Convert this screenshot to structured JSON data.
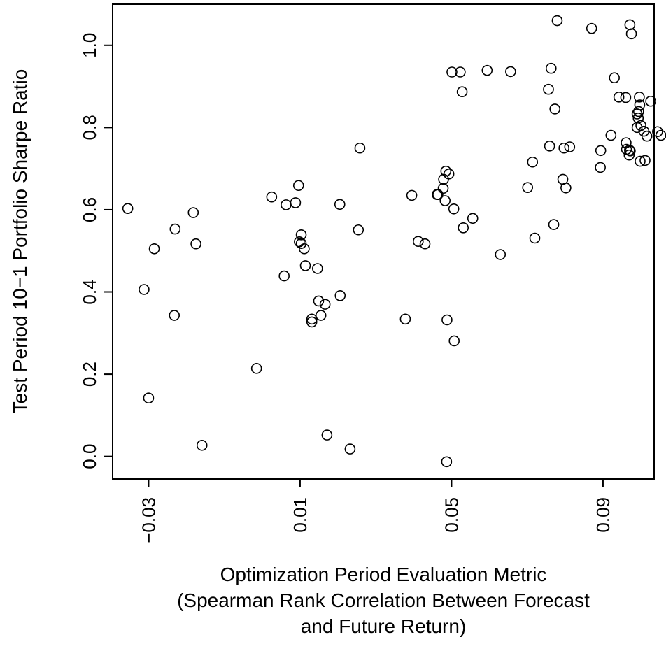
{
  "chart_data": {
    "type": "scatter",
    "title": "",
    "xlabel_lines": [
      "Optimization Period Evaluation Metric",
      "(Spearman Rank Correlation Between Forecast",
      "and Future Return)"
    ],
    "ylabel": "Test Period 10−1 Portfolio Sharpe Ratio",
    "xlim": [
      -0.0395,
      0.1035
    ],
    "ylim": [
      -0.055,
      1.1
    ],
    "xticks": [
      {
        "value": -0.03,
        "label": "−0.03"
      },
      {
        "value": 0.01,
        "label": "0.01"
      },
      {
        "value": 0.05,
        "label": "0.05"
      },
      {
        "value": 0.09,
        "label": "0.09"
      }
    ],
    "yticks": [
      {
        "value": 0.0,
        "label": "0.0"
      },
      {
        "value": 0.2,
        "label": "0.2"
      },
      {
        "value": 0.4,
        "label": "0.4"
      },
      {
        "value": 0.6,
        "label": "0.6"
      },
      {
        "value": 0.8,
        "label": "0.8"
      },
      {
        "value": 1.0,
        "label": "1.0"
      }
    ],
    "grid": false,
    "marker": "open-circle",
    "points": [
      {
        "x": -0.0355,
        "y": 0.603
      },
      {
        "x": -0.0312,
        "y": 0.406
      },
      {
        "x": -0.03,
        "y": 0.142
      },
      {
        "x": -0.0285,
        "y": 0.505
      },
      {
        "x": -0.0232,
        "y": 0.343
      },
      {
        "x": -0.023,
        "y": 0.553
      },
      {
        "x": -0.0182,
        "y": 0.593
      },
      {
        "x": -0.0175,
        "y": 0.517
      },
      {
        "x": -0.0159,
        "y": 0.027
      },
      {
        "x": -0.0015,
        "y": 0.214
      },
      {
        "x": 0.0025,
        "y": 0.631
      },
      {
        "x": 0.0058,
        "y": 0.439
      },
      {
        "x": 0.0063,
        "y": 0.612
      },
      {
        "x": 0.0088,
        "y": 0.617
      },
      {
        "x": 0.0096,
        "y": 0.659
      },
      {
        "x": 0.0098,
        "y": 0.522
      },
      {
        "x": 0.0103,
        "y": 0.539
      },
      {
        "x": 0.0103,
        "y": 0.518
      },
      {
        "x": 0.0111,
        "y": 0.505
      },
      {
        "x": 0.0114,
        "y": 0.464
      },
      {
        "x": 0.0131,
        "y": 0.334
      },
      {
        "x": 0.0131,
        "y": 0.327
      },
      {
        "x": 0.0146,
        "y": 0.457
      },
      {
        "x": 0.0149,
        "y": 0.378
      },
      {
        "x": 0.0155,
        "y": 0.343
      },
      {
        "x": 0.0166,
        "y": 0.37
      },
      {
        "x": 0.0171,
        "y": 0.052
      },
      {
        "x": 0.0205,
        "y": 0.613
      },
      {
        "x": 0.0206,
        "y": 0.391
      },
      {
        "x": 0.0232,
        "y": 0.018
      },
      {
        "x": 0.0254,
        "y": 0.551
      },
      {
        "x": 0.0258,
        "y": 0.75
      },
      {
        "x": 0.0378,
        "y": 0.334
      },
      {
        "x": 0.0395,
        "y": 0.635
      },
      {
        "x": 0.0412,
        "y": 0.523
      },
      {
        "x": 0.043,
        "y": 0.517
      },
      {
        "x": 0.0462,
        "y": 0.637
      },
      {
        "x": 0.0464,
        "y": 0.637
      },
      {
        "x": 0.0478,
        "y": 0.652
      },
      {
        "x": 0.0479,
        "y": 0.674
      },
      {
        "x": 0.0483,
        "y": 0.622
      },
      {
        "x": 0.0485,
        "y": 0.694
      },
      {
        "x": 0.0487,
        "y": -0.013
      },
      {
        "x": 0.0488,
        "y": 0.332
      },
      {
        "x": 0.0493,
        "y": 0.687
      },
      {
        "x": 0.0501,
        "y": 0.935
      },
      {
        "x": 0.0506,
        "y": 0.602
      },
      {
        "x": 0.0507,
        "y": 0.281
      },
      {
        "x": 0.0523,
        "y": 0.935
      },
      {
        "x": 0.0528,
        "y": 0.887
      },
      {
        "x": 0.0531,
        "y": 0.556
      },
      {
        "x": 0.0556,
        "y": 0.579
      },
      {
        "x": 0.0594,
        "y": 0.939
      },
      {
        "x": 0.0629,
        "y": 0.491
      },
      {
        "x": 0.0656,
        "y": 0.936
      },
      {
        "x": 0.0701,
        "y": 0.654
      },
      {
        "x": 0.0714,
        "y": 0.716
      },
      {
        "x": 0.072,
        "y": 0.531
      },
      {
        "x": 0.0756,
        "y": 0.893
      },
      {
        "x": 0.0759,
        "y": 0.755
      },
      {
        "x": 0.0763,
        "y": 0.944
      },
      {
        "x": 0.077,
        "y": 0.564
      },
      {
        "x": 0.0773,
        "y": 0.845
      },
      {
        "x": 0.0779,
        "y": 1.06
      },
      {
        "x": 0.0794,
        "y": 0.674
      },
      {
        "x": 0.0797,
        "y": 0.75
      },
      {
        "x": 0.0802,
        "y": 0.653
      },
      {
        "x": 0.0812,
        "y": 0.753
      },
      {
        "x": 0.087,
        "y": 1.041
      },
      {
        "x": 0.0893,
        "y": 0.703
      },
      {
        "x": 0.0894,
        "y": 0.744
      },
      {
        "x": 0.0921,
        "y": 0.781
      },
      {
        "x": 0.093,
        "y": 0.921
      },
      {
        "x": 0.0942,
        "y": 0.874
      },
      {
        "x": 0.096,
        "y": 0.873
      },
      {
        "x": 0.0961,
        "y": 0.763
      },
      {
        "x": 0.0962,
        "y": 0.747
      },
      {
        "x": 0.0969,
        "y": 0.733
      },
      {
        "x": 0.097,
        "y": 0.745
      },
      {
        "x": 0.0971,
        "y": 1.05
      },
      {
        "x": 0.0972,
        "y": 0.743
      },
      {
        "x": 0.0975,
        "y": 1.028
      },
      {
        "x": 0.099,
        "y": 0.833
      },
      {
        "x": 0.099,
        "y": 0.8
      },
      {
        "x": 0.0993,
        "y": 0.823
      },
      {
        "x": 0.0994,
        "y": 0.839
      },
      {
        "x": 0.0996,
        "y": 0.874
      },
      {
        "x": 0.0997,
        "y": 0.855
      },
      {
        "x": 0.0998,
        "y": 0.718
      },
      {
        "x": 0.1,
        "y": 0.805
      },
      {
        "x": 0.1008,
        "y": 0.791
      },
      {
        "x": 0.1011,
        "y": 0.72
      },
      {
        "x": 0.1016,
        "y": 0.779
      },
      {
        "x": 0.1026,
        "y": 0.864
      },
      {
        "x": 0.1044,
        "y": 0.79
      },
      {
        "x": 0.1053,
        "y": 0.781
      }
    ]
  }
}
